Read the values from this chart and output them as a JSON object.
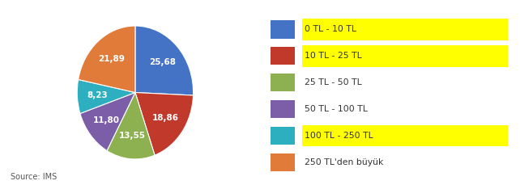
{
  "labels": [
    "0 TL - 10 TL",
    "10 TL - 25 TL",
    "25 TL - 50 TL",
    "50 TL - 100 TL",
    "100 TL - 250 TL",
    "250 TL'den büyük"
  ],
  "values": [
    25.68,
    18.86,
    13.55,
    11.8,
    8.23,
    21.89
  ],
  "colors": [
    "#4472C4",
    "#C0392B",
    "#8DB050",
    "#7B5EA7",
    "#2EAFC0",
    "#E07B39"
  ],
  "text_labels": [
    "25,68",
    "18,86",
    "13,55",
    "11,80",
    "8,23",
    "21,89"
  ],
  "highlight_legend": [
    0,
    1,
    4
  ],
  "source_text": "Source: IMS",
  "background_color": "#FFFFFF"
}
